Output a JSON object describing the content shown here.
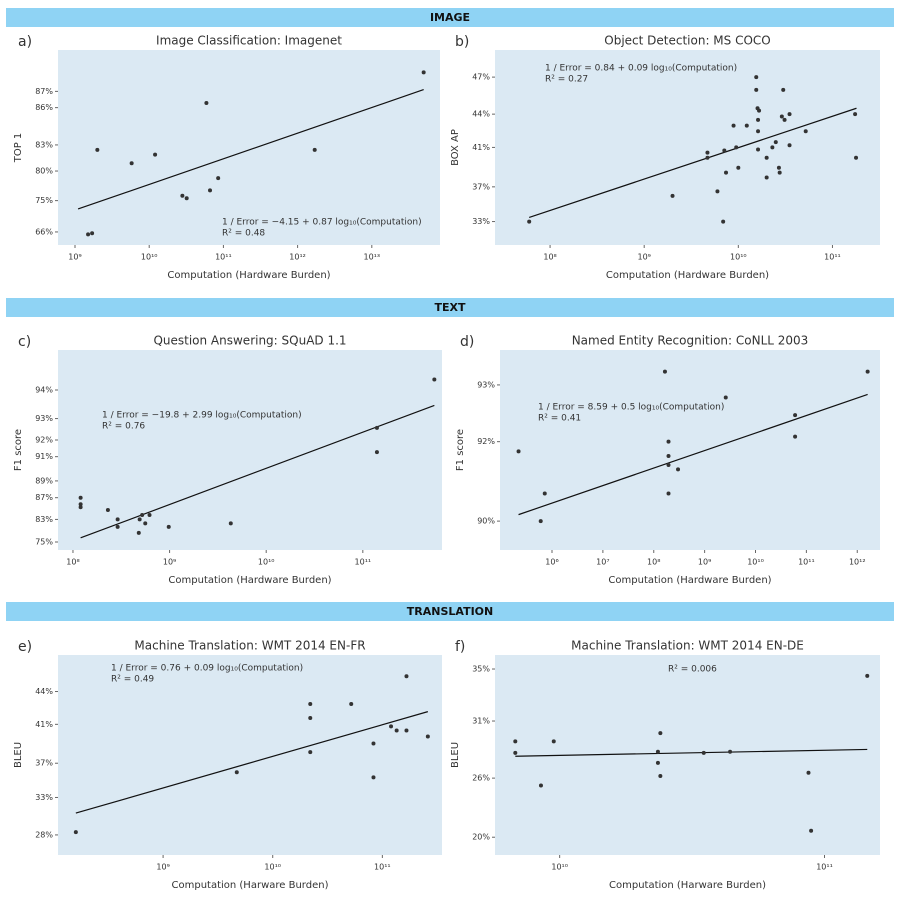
{
  "sections": [
    "IMAGE",
    "TEXT",
    "TRANSLATION"
  ],
  "chart_data": [
    {
      "type": "scatter",
      "label": "a)",
      "title": "Image Classification: Imagenet",
      "xlabel": "Computation (Hardware Burden)",
      "ylabel": "TOP 1",
      "x_scale": "log",
      "y_scale": "inverse-error",
      "color": "#333333",
      "fit_color": "#111111",
      "background": "#dbe9f3",
      "x": [
        1500000000.0,
        1700000000.0,
        2000000000.0,
        5800000000.0,
        12000000000.0,
        28000000000.0,
        32000000000.0,
        59000000000.0,
        66000000000.0,
        85000000000.0,
        1700000000000.0,
        50000000000000.0
      ],
      "values": [
        65,
        65.5,
        82.5,
        81,
        82,
        76,
        75.5,
        86.3,
        77,
        79,
        82.5,
        88
      ],
      "fit": {
        "x": [
          1100000000.0,
          50000000000000.0
        ],
        "values": [
          73.1,
          87.1
        ]
      },
      "annotations": [
        "1 / Error = −4.15 + 0.87 log₁₀(Computation)",
        "R² = 0.48"
      ],
      "xlim": [
        590000000.0,
        83000000000000.0
      ],
      "ylim": [
        60,
        89
      ],
      "xticks": [
        {
          "value": 1000000000.0,
          "label": "10⁹"
        },
        {
          "value": 10000000000.0,
          "label": "10¹⁰"
        },
        {
          "value": 100000000000.0,
          "label": "10¹¹"
        },
        {
          "value": 1000000000000.0,
          "label": "10¹²"
        },
        {
          "value": 10000000000000.0,
          "label": "10¹³"
        }
      ],
      "yticks": [
        {
          "value": 87,
          "label": "87%"
        },
        {
          "value": 86,
          "label": "86%"
        },
        {
          "value": 83,
          "label": "83%"
        },
        {
          "value": 80,
          "label": "80%"
        },
        {
          "value": 75,
          "label": "75%"
        },
        {
          "value": 66,
          "label": "66%"
        }
      ]
    },
    {
      "type": "scatter",
      "label": "b)",
      "title": "Object Detection: MS COCO",
      "xlabel": "Computation (Hardware Burden)",
      "ylabel": "BOX AP",
      "x_scale": "log",
      "y_scale": "inverse-error",
      "color": "#333333",
      "fit_color": "#111111",
      "background": "#dbe9f3",
      "x": [
        60000000.0,
        2000000000.0,
        4700000000.0,
        4700000000.0,
        6000000000.0,
        6900000000.0,
        7100000000.0,
        7400000000.0,
        8900000000.0,
        9500000000.0,
        10000000000.0,
        12300000000.0,
        15500000000.0,
        15500000000.0,
        16000000000.0,
        16600000000.0,
        16200000000.0,
        16200000000.0,
        16200000000.0,
        20000000000.0,
        20000000000.0,
        23000000000.0,
        25000000000.0,
        27000000000.0,
        27500000000.0,
        29000000000.0,
        30000000000.0,
        31000000000.0,
        35000000000.0,
        35000000000.0,
        52000000000.0,
        174000000000.0,
        178000000000.0
      ],
      "values": [
        33,
        36,
        40.5,
        40,
        36.5,
        33,
        40.7,
        38.5,
        43,
        41,
        39,
        43,
        47,
        46,
        44.5,
        44.3,
        43.5,
        42.5,
        40.8,
        40,
        38,
        41,
        41.5,
        39,
        38.5,
        43.8,
        46,
        43.5,
        44,
        41.2,
        42.5,
        44,
        40
      ],
      "fit": {
        "x": [
          60000000.0,
          180000000000.0
        ],
        "values": [
          33.5,
          44.5
        ]
      },
      "annotations": [
        "1 / Error = 0.84 + 0.09 log₁₀(Computation)",
        "R² = 0.27"
      ],
      "xlim": [
        26000000.0,
        320000000000.0
      ],
      "ylim": [
        30,
        49
      ],
      "xticks": [
        {
          "value": 100000000.0,
          "label": "10⁸"
        },
        {
          "value": 1000000000.0,
          "label": "10⁹"
        },
        {
          "value": 10000000000.0,
          "label": "10¹⁰"
        },
        {
          "value": 100000000000.0,
          "label": "10¹¹"
        }
      ],
      "yticks": [
        {
          "value": 47,
          "label": "47%"
        },
        {
          "value": 44,
          "label": "44%"
        },
        {
          "value": 41,
          "label": "41%"
        },
        {
          "value": 37,
          "label": "37%"
        },
        {
          "value": 33,
          "label": "33%"
        }
      ]
    },
    {
      "type": "scatter",
      "label": "c)",
      "title": "Question Answering: SQuAD 1.1",
      "xlabel": "Computation (Hardware Burden)",
      "ylabel": "F1 score",
      "x_scale": "log",
      "y_scale": "inverse-error",
      "color": "#333333",
      "fit_color": "#111111",
      "background": "#dbe9f3",
      "x": [
        120000000.0,
        120000000.0,
        120000000.0,
        230000000.0,
        290000000.0,
        290000000.0,
        480000000.0,
        490000000.0,
        520000000.0,
        560000000.0,
        620000000.0,
        980000000.0,
        4300000000.0,
        140000000000.0,
        140000000000.0,
        550000000000.0
      ],
      "values": [
        87,
        86,
        85.5,
        85,
        83,
        81,
        79,
        83,
        84,
        82,
        84,
        81,
        82,
        92.6,
        91.3,
        94.3
      ],
      "fit": {
        "x": [
          120000000.0,
          550000000000.0
        ],
        "values": [
          77,
          93.5
        ]
      },
      "annotations": [
        "1 / Error = −19.8 + 2.99 log₁₀(Computation)",
        "R² = 0.76"
      ],
      "xlim": [
        70000000.0,
        660000000000.0
      ],
      "ylim": [
        70,
        95
      ],
      "xticks": [
        {
          "value": 100000000.0,
          "label": "10⁸"
        },
        {
          "value": 1000000000.0,
          "label": "10⁹"
        },
        {
          "value": 10000000000.0,
          "label": "10¹⁰"
        },
        {
          "value": 100000000000.0,
          "label": "10¹¹"
        }
      ],
      "yticks": [
        {
          "value": 94,
          "label": "94%"
        },
        {
          "value": 93,
          "label": "93%"
        },
        {
          "value": 92,
          "label": "92%"
        },
        {
          "value": 91,
          "label": "91%"
        },
        {
          "value": 89,
          "label": "89%"
        },
        {
          "value": 87,
          "label": "87%"
        },
        {
          "value": 83,
          "label": "83%"
        },
        {
          "value": 75,
          "label": "75%"
        }
      ]
    },
    {
      "type": "scatter",
      "label": "d)",
      "title": "Named Entity Recognition: CoNLL 2003",
      "xlabel": "Computation (Hardware Burden)",
      "ylabel": "F1 score",
      "x_scale": "log",
      "y_scale": "inverse-error",
      "color": "#333333",
      "fit_color": "#111111",
      "background": "#dbe9f3",
      "x": [
        220000.0,
        720000.0,
        600000.0,
        166000000.0,
        195000000.0,
        195000000.0,
        195000000.0,
        195000000.0,
        300000000.0,
        2600000000.0,
        60000000000.0,
        60000000000.0,
        1600000000000.0
      ],
      "values": [
        91.8,
        90.8,
        90,
        93.2,
        92,
        91.7,
        91.5,
        90.8,
        91.4,
        92.8,
        92.5,
        92.1,
        93.2
      ],
      "fit": {
        "x": [
          220000.0,
          1600000000000.0
        ],
        "values": [
          90.2,
          92.85
        ]
      },
      "annotations": [
        "1 / Error = 8.59 + 0.5 log₁₀(Computation)",
        "R² = 0.41"
      ],
      "xlim": [
        95000.0,
        2800000000000.0
      ],
      "ylim": [
        89,
        93.5
      ],
      "xticks": [
        {
          "value": 1000000.0,
          "label": "10⁶"
        },
        {
          "value": 10000000.0,
          "label": "10⁷"
        },
        {
          "value": 100000000.0,
          "label": "10⁸"
        },
        {
          "value": 1000000000.0,
          "label": "10⁹"
        },
        {
          "value": 10000000000.0,
          "label": "10¹⁰"
        },
        {
          "value": 100000000000.0,
          "label": "10¹¹"
        },
        {
          "value": 1000000000000.0,
          "label": "10¹²"
        }
      ],
      "yticks": [
        {
          "value": 93,
          "label": "93%"
        },
        {
          "value": 92,
          "label": "92%"
        },
        {
          "value": 90,
          "label": "90%"
        }
      ]
    },
    {
      "type": "scatter",
      "label": "e)",
      "title": "Machine Translation: WMT 2014 EN-FR",
      "xlabel": "Computation (Harware Burden)",
      "ylabel": "BLEU",
      "x_scale": "log",
      "y_scale": "inverse-error",
      "color": "#333333",
      "fit_color": "#111111",
      "background": "#dbe9f3",
      "x": [
        160000000.0,
        4700000000.0,
        22000000000.0,
        22000000000.0,
        22000000000.0,
        52000000000.0,
        83000000000.0,
        83000000000.0,
        120000000000.0,
        135000000000.0,
        166000000000.0,
        166000000000.0,
        260000000000.0
      ],
      "values": [
        28.4,
        36,
        42.9,
        41.6,
        38.2,
        42.9,
        39.1,
        35.4,
        40.8,
        40.4,
        45.3,
        40.4,
        39.8
      ],
      "fit": {
        "x": [
          160000000.0,
          260000000000.0
        ],
        "values": [
          31,
          42.2
        ]
      },
      "annotations": [
        "1 / Error = 0.76 + 0.09 log₁₀(Computation)",
        "R² = 0.49"
      ],
      "xlim": [
        110000000.0,
        350000000000.0
      ],
      "ylim": [
        25,
        47
      ],
      "xticks": [
        {
          "value": 1000000000.0,
          "label": "10⁹"
        },
        {
          "value": 10000000000.0,
          "label": "10¹⁰"
        },
        {
          "value": 100000000000.0,
          "label": "10¹¹"
        }
      ],
      "yticks": [
        {
          "value": 44,
          "label": "44%"
        },
        {
          "value": 41,
          "label": "41%"
        },
        {
          "value": 37,
          "label": "37%"
        },
        {
          "value": 33,
          "label": "33%"
        },
        {
          "value": 28,
          "label": "28%"
        }
      ]
    },
    {
      "type": "scatter",
      "label": "f)",
      "title": "Machine Translation: WMT 2014 EN-DE",
      "xlabel": "Computation (Harware Burden)",
      "ylabel": "BLEU",
      "x_scale": "log",
      "y_scale": "inverse-error",
      "color": "#333333",
      "fit_color": "#111111",
      "background": "#dbe9f3",
      "x": [
        6800000000.0,
        6800000000.0,
        9500000000.0,
        8500000000.0,
        23500000000.0,
        24000000000.0,
        23500000000.0,
        24000000000.0,
        35000000000.0,
        44000000000.0,
        87000000000.0,
        89000000000.0,
        145000000000.0
      ],
      "values": [
        29.3,
        28.3,
        29.3,
        25.3,
        28.4,
        30,
        27.4,
        26.2,
        28.3,
        28.4,
        26.5,
        20.7,
        34.5
      ],
      "fit": {
        "x": [
          6800000000.0,
          145000000000.0
        ],
        "values": [
          28,
          28.6
        ]
      },
      "annotations": [
        "R² = 0.006"
      ],
      "xlim": [
        5700000000.0,
        162000000000.0
      ],
      "ylim": [
        18,
        36
      ],
      "xticks": [
        {
          "value": 10000000000.0,
          "label": "10¹⁰"
        },
        {
          "value": 100000000000.0,
          "label": "10¹¹"
        }
      ],
      "yticks": [
        {
          "value": 35,
          "label": "35%"
        },
        {
          "value": 31,
          "label": "31%"
        },
        {
          "value": 26,
          "label": "26%"
        },
        {
          "value": 20,
          "label": "20%"
        }
      ]
    }
  ]
}
